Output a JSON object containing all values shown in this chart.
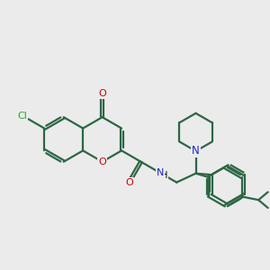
{
  "background_color": "#ebebeb",
  "bond_color": "#2d6645",
  "bond_width": 1.6,
  "O_color": "#cc0000",
  "N_color": "#2222cc",
  "Cl_color": "#22aa22",
  "figsize": [
    3.0,
    3.0
  ],
  "dpi": 100,
  "xlim": [
    0,
    12
  ],
  "ylim": [
    0,
    12
  ]
}
